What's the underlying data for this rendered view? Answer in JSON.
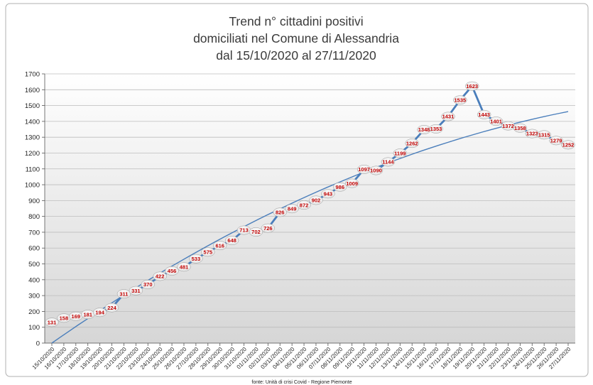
{
  "chart_data": {
    "type": "line",
    "title_lines": [
      "Trend n° cittadini positivi",
      "domiciliati nel Comune di Alessandria",
      "dal 15/10/2020 al 27/11/2020"
    ],
    "ylim": [
      0,
      1700
    ],
    "y_ticks": [
      0,
      100,
      200,
      300,
      400,
      500,
      600,
      700,
      800,
      900,
      1000,
      1100,
      1200,
      1300,
      1400,
      1500,
      1600,
      1700
    ],
    "grid": true,
    "categories": [
      "15/10/2020",
      "16/10/2020",
      "17/10/2020",
      "18/10/2020",
      "19/10/2020",
      "20/10/2020",
      "21/10/2020",
      "22/10/2020",
      "23/10/2020",
      "24/10/2020",
      "25/10/2020",
      "26/10/2020",
      "27/10/2020",
      "28/10/2020",
      "29/10/2020",
      "30/10/2020",
      "31/10/2020",
      "01/11/2020",
      "02/11/2020",
      "03/11/2020",
      "04/11/2020",
      "05/11/2020",
      "06/11/2020",
      "07/11/2020",
      "08/11/2020",
      "09/11/2020",
      "10/11/2020",
      "11/11/2020",
      "12/11/2020",
      "13/11/2020",
      "14/11/2020",
      "15/11/2020",
      "16/11/2020",
      "17/11/2020",
      "18/11/2020",
      "19/11/2020",
      "20/11/2020",
      "21/11/2020",
      "22/11/2020",
      "23/11/2020",
      "24/11/2020",
      "25/11/2020",
      "26/11/2020",
      "27/11/2020"
    ],
    "series": [
      {
        "values": [
          131,
          158,
          169,
          181,
          194,
          224,
          311,
          331,
          370,
          422,
          456,
          481,
          533,
          575,
          616,
          648,
          713,
          702,
          726,
          826,
          849,
          872,
          902,
          943,
          986,
          1009,
          1097,
          1090,
          1144,
          1199,
          1262,
          1348,
          1353,
          1431,
          1535,
          1623,
          1443,
          1401,
          1372,
          1358,
          1323,
          1315,
          1279,
          1252
        ],
        "labels": [
          "131",
          "158",
          "169",
          "181",
          "194",
          "224",
          "311",
          "331",
          "370",
          "422",
          "456",
          "481",
          "533",
          "575",
          "616",
          "648",
          "713",
          "702",
          "726",
          "826",
          "849",
          "872",
          "902",
          "943",
          "986",
          "1009",
          "1097",
          "1090",
          "1144",
          "1199",
          "1262",
          "1348",
          "1353",
          "1431",
          "1535",
          "1623",
          "1443",
          "1401",
          "1372",
          "1358",
          "1323",
          "1315",
          "1279",
          "1252"
        ],
        "color": "#4a7ebb"
      }
    ],
    "trendline": {
      "type": "polynomial",
      "color": "#4a7ebb",
      "start": 0,
      "end": 1462
    },
    "footnote": "fonte: Unità di crisi Covid - Regione Piemonte"
  }
}
